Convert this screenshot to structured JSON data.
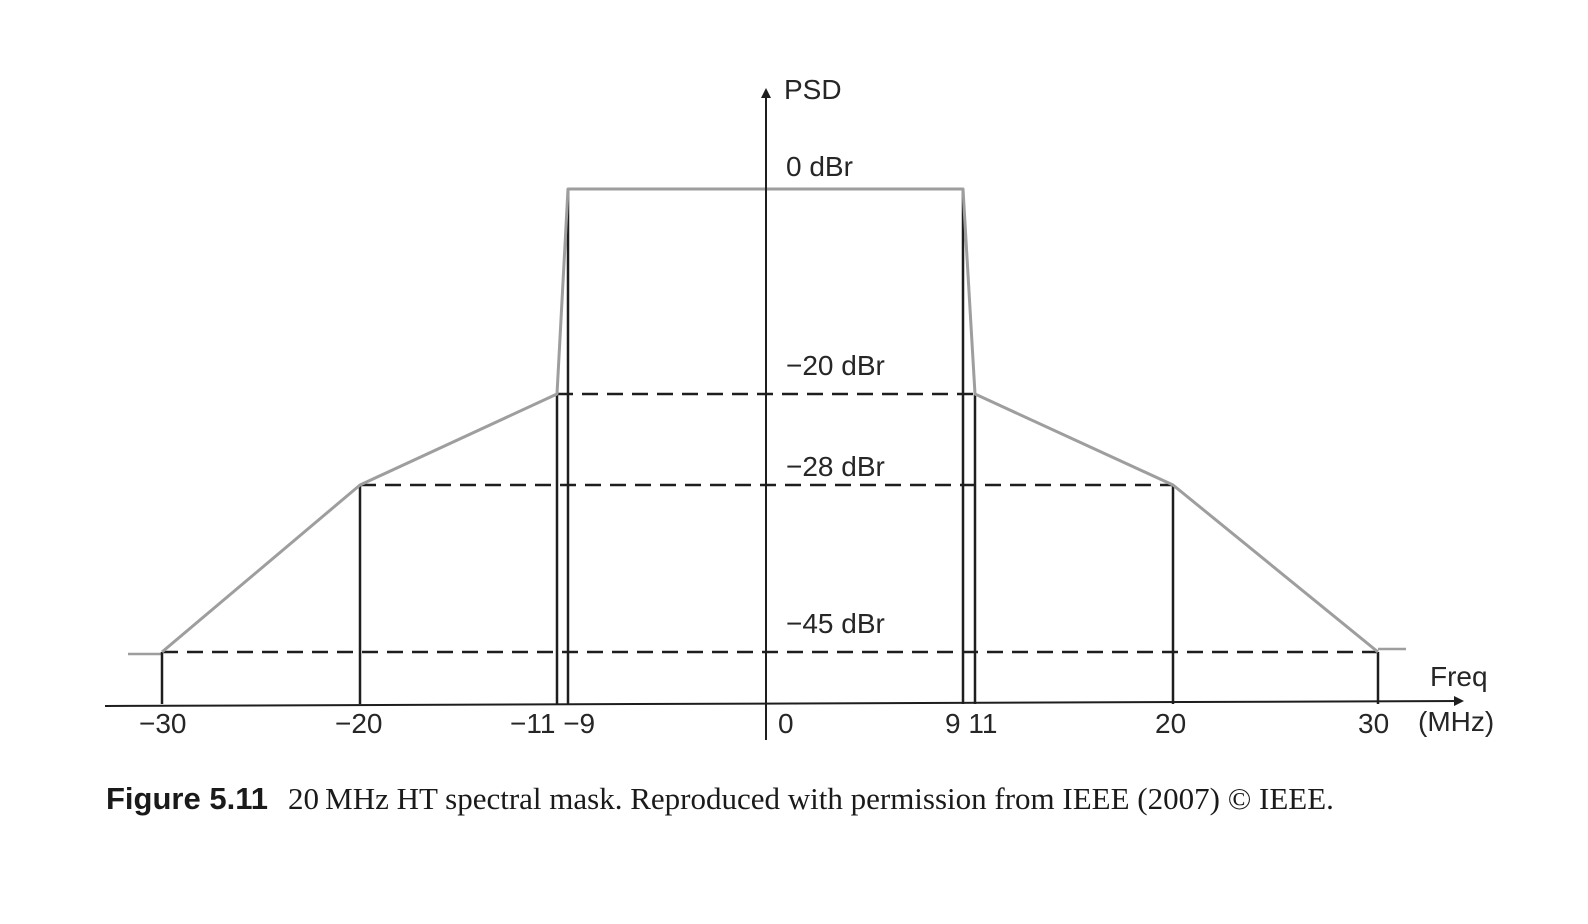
{
  "figure": {
    "y_axis_label": "PSD",
    "x_axis_label": "Freq",
    "x_axis_unit": "(MHz)",
    "x_ticks": [
      {
        "value": -30,
        "label": "−30"
      },
      {
        "value": -20,
        "label": "−20"
      },
      {
        "value": -11,
        "label": "−11 −9"
      },
      {
        "value": 0,
        "label": "0"
      },
      {
        "value": 9,
        "label": "9 11"
      },
      {
        "value": 20,
        "label": "20"
      },
      {
        "value": 30,
        "label": "30"
      }
    ],
    "levels": [
      {
        "value": 0,
        "label": "0 dBr"
      },
      {
        "value": -20,
        "label": "−20 dBr"
      },
      {
        "value": -28,
        "label": "−28 dBr"
      },
      {
        "value": -45,
        "label": "−45 dBr"
      }
    ],
    "mask_points": [
      {
        "f": -30,
        "dbr": -45
      },
      {
        "f": -20,
        "dbr": -28
      },
      {
        "f": -11,
        "dbr": -20
      },
      {
        "f": -9,
        "dbr": 0
      },
      {
        "f": 9,
        "dbr": 0
      },
      {
        "f": 11,
        "dbr": -20
      },
      {
        "f": 20,
        "dbr": -28
      },
      {
        "f": 30,
        "dbr": -45
      }
    ],
    "colors": {
      "mask": "#9e9e9e",
      "lines": "#1e1e1e"
    }
  },
  "caption": {
    "label": "Figure 5.11",
    "text": "20 MHz HT spectral mask. Reproduced with permission from IEEE (2007) © IEEE."
  }
}
